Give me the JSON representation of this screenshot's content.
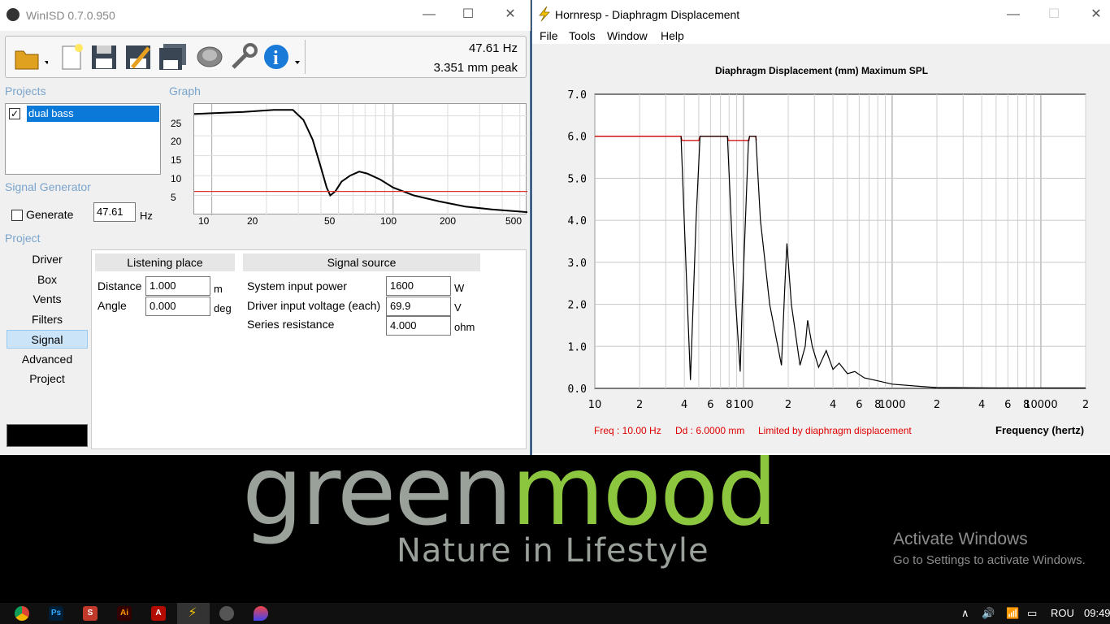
{
  "winisd": {
    "title": "WinISD 0.7.0.950",
    "freq_readout": "47.61 Hz",
    "peak_readout": "3.351 mm peak",
    "projects_label": "Projects",
    "graph_label": "Graph",
    "project_name": "dual bass",
    "signal_generator_label": "Signal Generator",
    "generate_label": "Generate",
    "generator_freq": "47.61",
    "generator_unit": "Hz",
    "project_label": "Project",
    "nav": [
      "Driver",
      "Box",
      "Vents",
      "Filters",
      "Signal",
      "Advanced",
      "Project"
    ],
    "active_nav": "Signal",
    "graph_y_ticks": [
      "25",
      "20",
      "15",
      "10",
      "5"
    ],
    "graph_x_ticks": [
      "10",
      "20",
      "50",
      "100",
      "200",
      "500"
    ],
    "listening_place": {
      "header": "Listening place",
      "distance_label": "Distance",
      "distance_value": "1.000",
      "distance_unit": "m",
      "angle_label": "Angle",
      "angle_value": "0.000",
      "angle_unit": "deg"
    },
    "signal_source": {
      "header": "Signal source",
      "power_label": "System input power",
      "power_value": "1600",
      "power_unit": "W",
      "voltage_label": "Driver input voltage (each)",
      "voltage_value": "69.9",
      "voltage_unit": "V",
      "resistance_label": "Series resistance",
      "resistance_value": "4.000",
      "resistance_unit": "ohm"
    }
  },
  "hornresp": {
    "title": "Hornresp - Diaphragm Displacement",
    "menu": [
      "File",
      "Tools",
      "Window",
      "Help"
    ],
    "status_freq": "Freq : 10.00 Hz",
    "status_dd": "Dd : 6.0000 mm",
    "status_limit": "Limited by diaphragm displacement",
    "xlabel": "Frequency (hertz)"
  },
  "chart_data": {
    "type": "line",
    "title": "Diaphragm Displacement (mm)   Maximum SPL",
    "xlabel": "Frequency (hertz)",
    "ylabel": "",
    "x_scale": "log",
    "xlim": [
      10,
      20000
    ],
    "ylim": [
      0,
      7
    ],
    "y_ticks": [
      "0.0",
      "1.0",
      "2.0",
      "3.0",
      "4.0",
      "5.0",
      "6.0",
      "7.0"
    ],
    "x_ticks": [
      "10",
      "2",
      "4",
      "6",
      "8",
      "100",
      "2",
      "4",
      "6",
      "8",
      "1000",
      "2",
      "4",
      "6",
      "8",
      "10000",
      "2"
    ],
    "grid": true,
    "series": [
      {
        "color": "#cc0000",
        "x": [
          10,
          38,
          38.5,
          50,
          51,
          78,
          79,
          109,
          110,
          121,
          122
        ],
        "y": [
          6.0,
          6.0,
          5.9,
          5.9,
          6.0,
          6.0,
          5.9,
          5.9,
          6.0,
          6.0,
          5.9
        ]
      },
      {
        "color": "#000000",
        "x": [
          38,
          42,
          44,
          48,
          51,
          78,
          85,
          95,
          98,
          108,
          110,
          121,
          130,
          150,
          180,
          190,
          196,
          210,
          240,
          260,
          270,
          290,
          320,
          360,
          400,
          440,
          500,
          560,
          650,
          800,
          1000,
          1500,
          2000,
          5000,
          20000
        ],
        "y": [
          6.0,
          2.0,
          0.2,
          4.0,
          6.0,
          6.0,
          3.0,
          0.4,
          2.0,
          5.9,
          6.0,
          6.0,
          4.0,
          2.0,
          0.55,
          2.5,
          3.45,
          2.0,
          0.55,
          1.0,
          1.62,
          1.0,
          0.5,
          0.9,
          0.45,
          0.6,
          0.35,
          0.4,
          0.25,
          0.18,
          0.1,
          0.05,
          0.02,
          0.01,
          0.01
        ]
      }
    ]
  },
  "graph_data": {
    "type": "line",
    "x_scale": "log",
    "xlim": [
      8,
      550
    ],
    "ylim": [
      0,
      28
    ],
    "series": [
      {
        "color": "#000000",
        "x": [
          8,
          15,
          22,
          28,
          32,
          36,
          40,
          43,
          45,
          48,
          52,
          58,
          65,
          72,
          85,
          100,
          130,
          180,
          250,
          350,
          550
        ],
        "y": [
          25.5,
          26,
          26.5,
          26.5,
          24,
          19,
          12,
          7,
          5,
          6,
          8.5,
          10,
          11,
          10.5,
          9,
          7,
          5,
          3.5,
          2.2,
          1.5,
          0.8
        ]
      },
      {
        "color": "#dd3333",
        "x": [
          8,
          550
        ],
        "y": [
          6,
          6
        ]
      }
    ]
  },
  "desktop": {
    "brand_gray": "green",
    "brand_green": "mood",
    "tagline": "Nature in Lifestyle",
    "activate_title": "Activate Windows",
    "activate_sub": "Go to Settings to activate Windows."
  },
  "taskbar": {
    "language": "ROU",
    "time": "09:49"
  }
}
